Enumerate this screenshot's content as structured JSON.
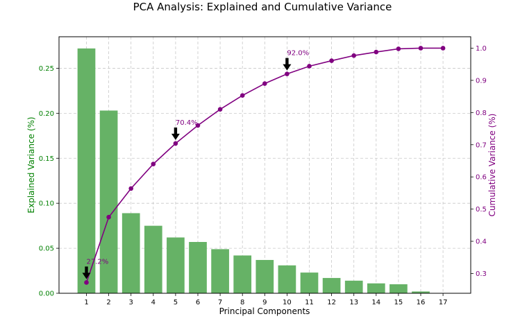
{
  "chart_data": {
    "type": "bar+line",
    "title": "PCA Analysis: Explained and Cumulative Variance",
    "xlabel": "Principal Components",
    "ylabel_left": "Explained Variance (%)",
    "ylabel_right": "Cumulative Variance (%)",
    "categories": [
      "1",
      "2",
      "3",
      "4",
      "5",
      "6",
      "7",
      "8",
      "9",
      "10",
      "11",
      "12",
      "13",
      "14",
      "15",
      "16",
      "17"
    ],
    "explained_variance": [
      0.272,
      0.203,
      0.089,
      0.075,
      0.062,
      0.057,
      0.049,
      0.042,
      0.037,
      0.031,
      0.023,
      0.017,
      0.014,
      0.011,
      0.01,
      0.002,
      0.0
    ],
    "cumulative_variance": [
      0.272,
      0.475,
      0.564,
      0.64,
      0.704,
      0.76,
      0.81,
      0.853,
      0.89,
      0.92,
      0.944,
      0.961,
      0.977,
      0.988,
      0.998,
      1.0,
      1.0
    ],
    "ylim_left": [
      0,
      0.285
    ],
    "ylim_right": [
      0.2385,
      1.0355
    ],
    "yticks_left": [
      0.0,
      0.05,
      0.1,
      0.15,
      0.2,
      0.25
    ],
    "yticks_left_labels": [
      "0.00",
      "0.05",
      "0.10",
      "0.15",
      "0.20",
      "0.25"
    ],
    "yticks_right": [
      0.3,
      0.4,
      0.5,
      0.6,
      0.7,
      0.8,
      0.9,
      1.0
    ],
    "yticks_right_labels": [
      "0.3",
      "0.4",
      "0.5",
      "0.6",
      "0.7",
      "0.8",
      "0.9",
      "1.0"
    ],
    "annotations": [
      {
        "x": 1,
        "y": 0.272,
        "label": "27.2%"
      },
      {
        "x": 5,
        "y": 0.704,
        "label": "70.4%"
      },
      {
        "x": 10,
        "y": 0.92,
        "label": "92.0%"
      }
    ],
    "grid": true,
    "colors": {
      "bar": "#66b266",
      "line": "#800080",
      "left_axis": "#008000",
      "right_axis": "#800080"
    }
  }
}
